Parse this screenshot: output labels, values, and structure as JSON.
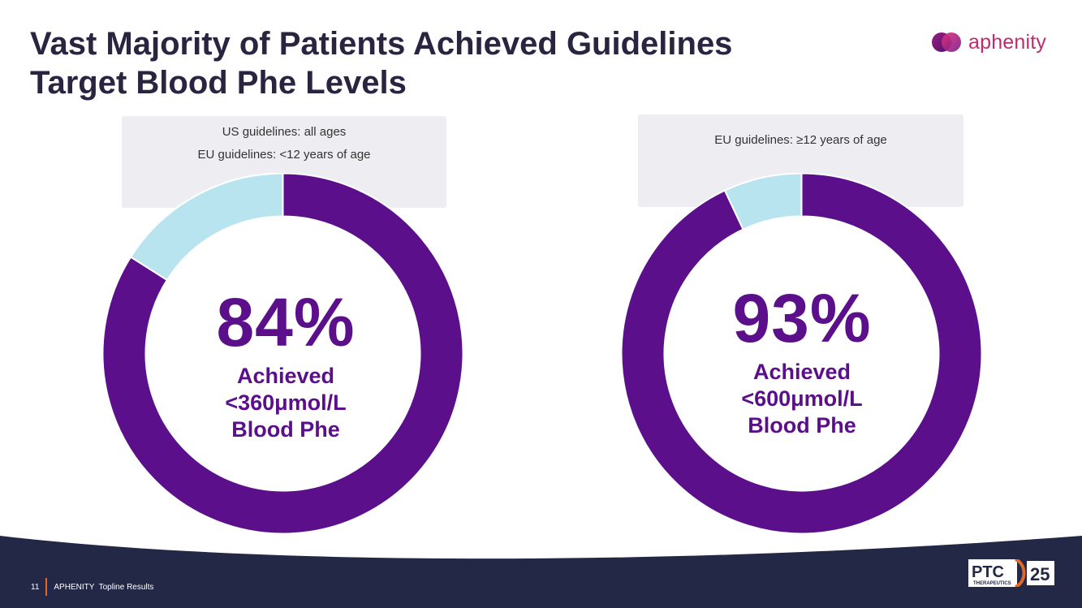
{
  "slide": {
    "title_line1": "Vast Majority of Patients Achieved Guidelines",
    "title_line2": "Target Blood Phe Levels",
    "brand_name": "aphenity",
    "page_number": "11",
    "footer_text": "APHENITY  Topline Results",
    "footer_logo_text": "PTC",
    "footer_logo_subtext": "THERAPEUTICS",
    "footer_logo_badge": "25"
  },
  "notes": {
    "left": [
      "US guidelines: all ages",
      "EU guidelines: <12 years of age"
    ],
    "right": [
      "EU guidelines: ≥12 years of age"
    ]
  },
  "colors": {
    "achieved": "#5b0f8b",
    "remaining": "#b8e4f0",
    "title": "#2a2440",
    "brand": "#c12a6e",
    "footer": "#232846"
  },
  "chart_data": [
    {
      "type": "pie",
      "variant": "donut",
      "center_value": "84%",
      "center_label_lines": [
        "Achieved",
        "<360μmol/L",
        "Blood Phe"
      ],
      "values": [
        84,
        16
      ],
      "unit": "%"
    },
    {
      "type": "pie",
      "variant": "donut",
      "center_value": "93%",
      "center_label_lines": [
        "Achieved",
        "<600μmol/L",
        "Blood Phe"
      ],
      "values": [
        93,
        7
      ],
      "unit": "%"
    }
  ]
}
